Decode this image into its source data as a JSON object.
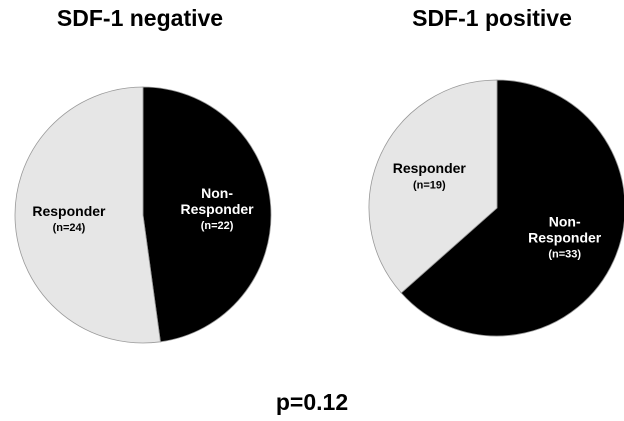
{
  "chart_data": [
    {
      "type": "pie",
      "title": "SDF-1 negative",
      "categories": [
        "Non-\nResponder",
        "Responder"
      ],
      "values": [
        22,
        24
      ],
      "value_labels": [
        "(n=22)",
        "(n=24)"
      ],
      "colors": [
        "#000000",
        "#e6e6e6"
      ]
    },
    {
      "type": "pie",
      "title": "SDF-1 positive",
      "categories": [
        "Non-\nResponder",
        "Responder"
      ],
      "values": [
        33,
        19
      ],
      "value_labels": [
        "(n=33)",
        "(n=19)"
      ],
      "colors": [
        "#000000",
        "#e6e6e6"
      ]
    }
  ],
  "annotation": "p=0.12"
}
